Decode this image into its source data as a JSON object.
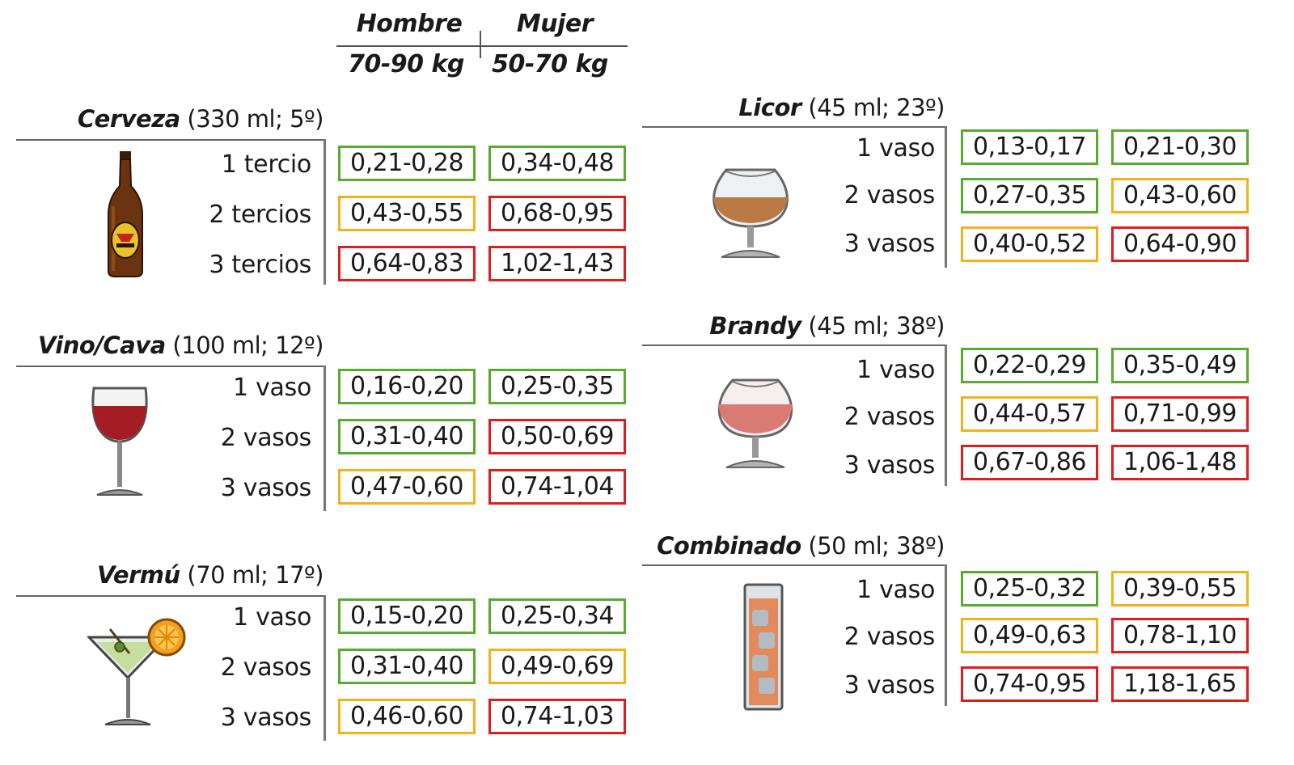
{
  "header": {
    "col_men": "Hombre",
    "col_women": "Mujer",
    "weight_men": "70-90 kg",
    "weight_women": "50-70 kg"
  },
  "colors": {
    "green": "#58ab2e",
    "yellow": "#f2b21a",
    "red": "#e01d1d"
  },
  "sections": {
    "cerveza": {
      "name": "Cerveza",
      "detail": " (330 ml; 5º)",
      "icon": "beer-bottle-icon",
      "rows": [
        {
          "label": "1 tercio",
          "men": "0,21-0,28",
          "men_level": "green",
          "women": "0,34-0,48",
          "women_level": "green"
        },
        {
          "label": "2 tercios",
          "men": "0,43-0,55",
          "men_level": "yellow",
          "women": "0,68-0,95",
          "women_level": "red"
        },
        {
          "label": "3 tercios",
          "men": "0,64-0,83",
          "men_level": "red",
          "women": "1,02-1,43",
          "women_level": "red"
        }
      ]
    },
    "vino": {
      "name": "Vino/Cava",
      "detail": " (100 ml; 12º)",
      "icon": "wine-glass-icon",
      "rows": [
        {
          "label": "1 vaso",
          "men": "0,16-0,20",
          "men_level": "green",
          "women": "0,25-0,35",
          "women_level": "green"
        },
        {
          "label": "2 vasos",
          "men": "0,31-0,40",
          "men_level": "green",
          "women": "0,50-0,69",
          "women_level": "red"
        },
        {
          "label": "3 vasos",
          "men": "0,47-0,60",
          "men_level": "yellow",
          "women": "0,74-1,04",
          "women_level": "red"
        }
      ]
    },
    "vermu": {
      "name": "Vermú",
      "detail": " (70 ml; 17º)",
      "icon": "martini-glass-icon",
      "rows": [
        {
          "label": "1 vaso",
          "men": "0,15-0,20",
          "men_level": "green",
          "women": "0,25-0,34",
          "women_level": "green"
        },
        {
          "label": "2 vasos",
          "men": "0,31-0,40",
          "men_level": "green",
          "women": "0,49-0,69",
          "women_level": "yellow"
        },
        {
          "label": "3 vasos",
          "men": "0,46-0,60",
          "men_level": "yellow",
          "women": "0,74-1,03",
          "women_level": "red"
        }
      ]
    },
    "licor": {
      "name": "Licor",
      "detail": " (45 ml; 23º)",
      "icon": "liqueur-glass-icon",
      "rows": [
        {
          "label": "1 vaso",
          "men": "0,13-0,17",
          "men_level": "green",
          "women": "0,21-0,30",
          "women_level": "green"
        },
        {
          "label": "2 vasos",
          "men": "0,27-0,35",
          "men_level": "green",
          "women": "0,43-0,60",
          "women_level": "yellow"
        },
        {
          "label": "3 vasos",
          "men": "0,40-0,52",
          "men_level": "yellow",
          "women": "0,64-0,90",
          "women_level": "red"
        }
      ]
    },
    "brandy": {
      "name": "Brandy",
      "detail": " (45 ml; 38º)",
      "icon": "brandy-glass-icon",
      "rows": [
        {
          "label": "1 vaso",
          "men": "0,22-0,29",
          "men_level": "green",
          "women": "0,35-0,49",
          "women_level": "green"
        },
        {
          "label": "2 vasos",
          "men": "0,44-0,57",
          "men_level": "yellow",
          "women": "0,71-0,99",
          "women_level": "red"
        },
        {
          "label": "3 vasos",
          "men": "0,67-0,86",
          "men_level": "red",
          "women": "1,06-1,48",
          "women_level": "red"
        }
      ]
    },
    "combinado": {
      "name": "Combinado",
      "detail": " (50 ml; 38º)",
      "icon": "highball-glass-icon",
      "rows": [
        {
          "label": "1 vaso",
          "men": "0,25-0,32",
          "men_level": "green",
          "women": "0,39-0,55",
          "women_level": "yellow"
        },
        {
          "label": "2 vasos",
          "men": "0,49-0,63",
          "men_level": "yellow",
          "women": "0,78-1,10",
          "women_level": "red"
        },
        {
          "label": "3 vasos",
          "men": "0,74-0,95",
          "men_level": "red",
          "women": "1,18-1,65",
          "women_level": "red"
        }
      ]
    }
  }
}
